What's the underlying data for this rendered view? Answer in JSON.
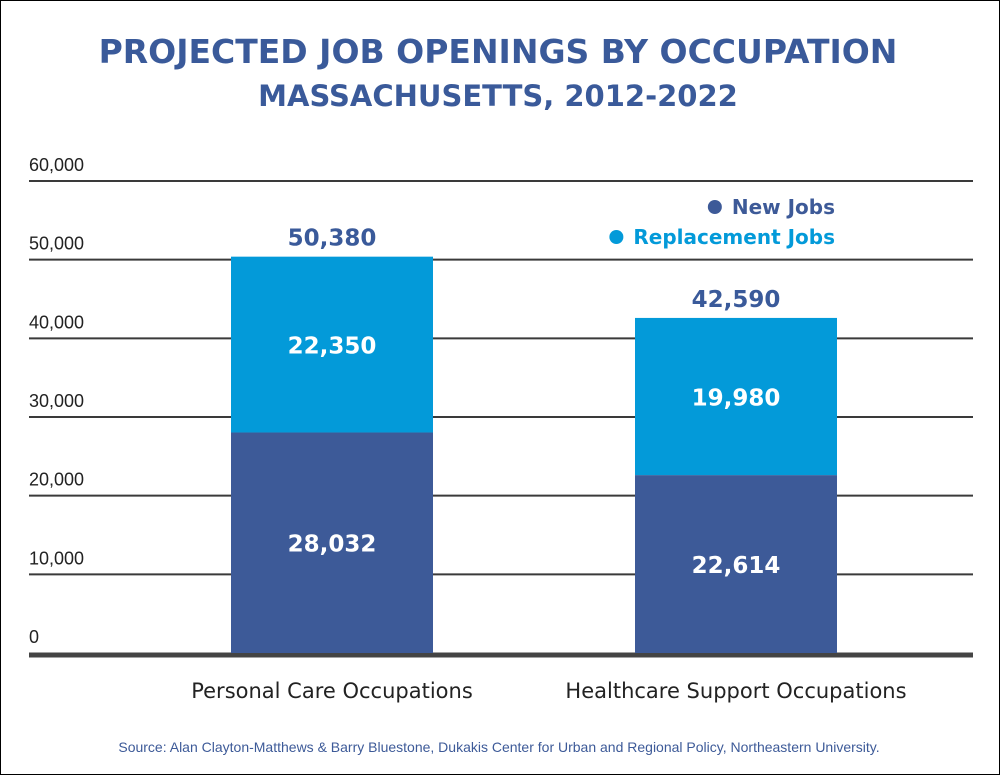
{
  "chart_data": {
    "type": "bar",
    "stacked": true,
    "title": "PROJECTED JOB OPENINGS BY OCCUPATION",
    "subtitle": "MASSACHUSETTS, 2012-2022",
    "xlabel": "",
    "ylabel": "",
    "ylim": [
      0,
      60000
    ],
    "y_ticks": [
      0,
      10000,
      20000,
      30000,
      40000,
      50000,
      60000
    ],
    "y_tick_labels": [
      "0",
      "10,000",
      "20,000",
      "30,000",
      "40,000",
      "50,000",
      "60,000"
    ],
    "grid": true,
    "legend_position": "top-right",
    "categories": [
      "Personal Care Occupations",
      "Healthcare Support Occupations"
    ],
    "series": [
      {
        "name": "New Jobs",
        "color": "#3d5a98",
        "values": [
          28032,
          22614
        ],
        "labels": [
          "28,032",
          "22,614"
        ]
      },
      {
        "name": "Replacement Jobs",
        "color": "#039ad9",
        "values": [
          22350,
          19980
        ],
        "labels": [
          "22,350",
          "19,980"
        ]
      }
    ],
    "totals": [
      50380,
      42590
    ],
    "total_labels": [
      "50,380",
      "42,590"
    ],
    "source": "Source:  Alan Clayton-Matthews & Barry Bluestone, Dukakis Center for Urban and Regional Policy, Northeastern University."
  },
  "colors": {
    "title": "#3a5a9a",
    "axis": "#444444",
    "gridline": "#3a3a3a",
    "source": "#3d5a98"
  }
}
